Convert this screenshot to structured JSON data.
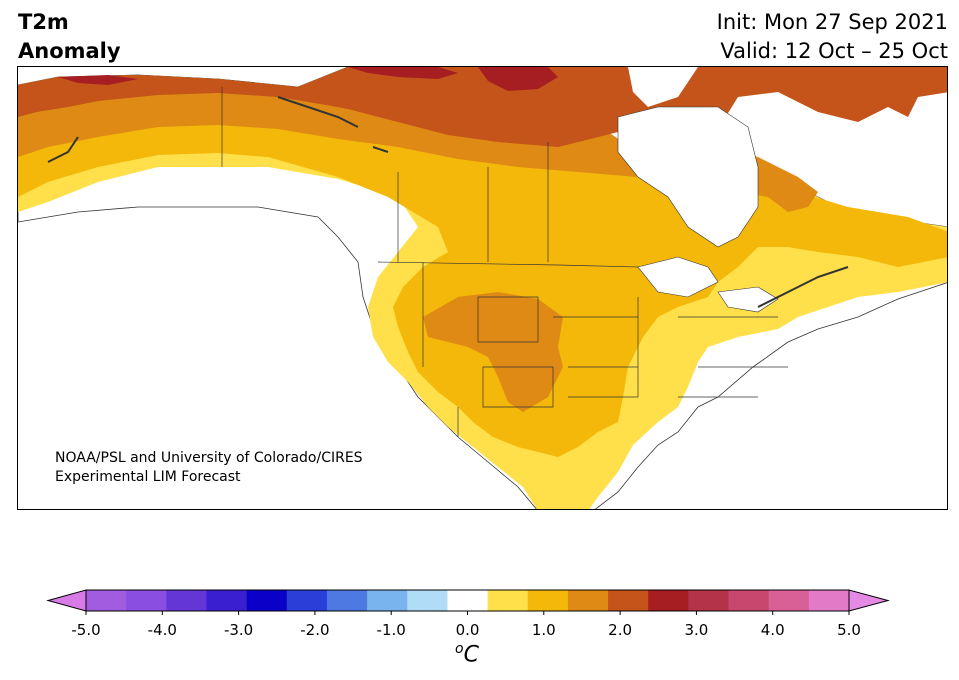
{
  "header": {
    "title_line1": "T2m",
    "title_line2": "Anomaly",
    "init_text": "Init: Mon 27 Sep 2021",
    "valid_text": "Valid: 12 Oct – 25 Oct"
  },
  "credit": {
    "line1": "NOAA/PSL and University of Colorado/CIRES",
    "line2": "Experimental LIM Forecast"
  },
  "colorbar": {
    "unit_o": "o",
    "unit_c": "C",
    "ticks": [
      "-5.0",
      "-4.0",
      "-3.0",
      "-2.0",
      "-1.0",
      "0.0",
      "1.0",
      "2.0",
      "3.0",
      "4.0",
      "5.0"
    ],
    "bins": [
      {
        "range": "<-5.0",
        "color": "#d97be6"
      },
      {
        "range": "-5.0 to -4.5",
        "color": "#a25ce0"
      },
      {
        "range": "-4.5 to -4.0",
        "color": "#8a4ee0"
      },
      {
        "range": "-4.0 to -3.5",
        "color": "#6436d6"
      },
      {
        "range": "-3.5 to -3.0",
        "color": "#3a1fd0"
      },
      {
        "range": "-3.0 to -2.5",
        "color": "#0a00c8"
      },
      {
        "range": "-2.5 to -2.0",
        "color": "#2a3fd8"
      },
      {
        "range": "-2.0 to -1.5",
        "color": "#4e78e2"
      },
      {
        "range": "-1.5 to -1.0",
        "color": "#7ab4ee"
      },
      {
        "range": "-1.0 to -0.5",
        "color": "#b0dcf8"
      },
      {
        "range": "-0.5 to 0.5",
        "color": "#ffffff"
      },
      {
        "range": "0.5 to 1.0",
        "color": "#ffe04a"
      },
      {
        "range": "1.0 to 1.5",
        "color": "#f3b80a"
      },
      {
        "range": "1.5 to 2.0",
        "color": "#de8a14"
      },
      {
        "range": "2.0 to 2.5",
        "color": "#c4541a"
      },
      {
        "range": "2.5 to 3.0",
        "color": "#a61e22"
      },
      {
        "range": "3.0 to 3.5",
        "color": "#b53348"
      },
      {
        "range": "3.5 to 4.0",
        "color": "#c8476e"
      },
      {
        "range": "4.0 to 4.5",
        "color": "#d86096"
      },
      {
        "range": "4.5 to 5.0",
        "color": "#e27ac8"
      },
      {
        "range": ">5.0",
        "color": "#e48ae4"
      }
    ]
  },
  "map_colors": {
    "water": "#ffffff",
    "border": "#333333"
  }
}
